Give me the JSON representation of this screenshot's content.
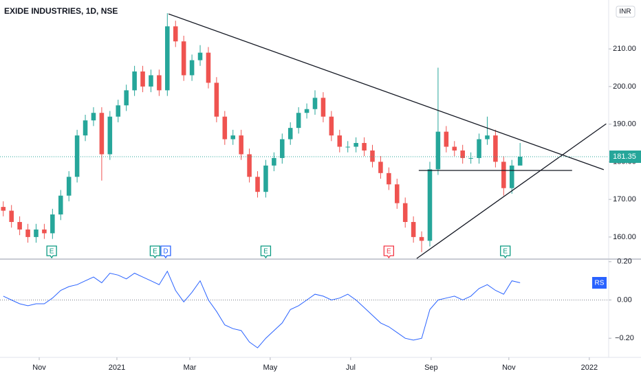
{
  "chart_data": {
    "type": "candlestick",
    "title": "EXIDE INDUSTRIES, 1D, NSE",
    "currency": "INR",
    "up_color": "#26a69a",
    "down_color": "#ef5350",
    "categories": [
      null,
      null,
      null,
      null,
      null,
      null,
      null,
      null,
      null,
      null,
      null,
      null,
      null,
      null,
      null,
      null,
      null,
      null,
      null,
      null,
      null,
      null,
      null,
      null,
      null,
      null,
      null,
      null,
      null,
      null,
      null,
      null,
      null,
      null,
      null,
      null,
      null,
      null,
      null,
      null,
      null,
      null,
      null,
      null,
      null,
      null,
      null,
      null,
      null,
      null,
      null,
      null,
      null,
      null,
      null,
      null,
      null,
      null,
      null,
      null,
      null,
      null,
      null,
      null
    ],
    "open": [
      168,
      167,
      164,
      162,
      160,
      162,
      161,
      166,
      171,
      176,
      187,
      191,
      193,
      182,
      192,
      195,
      199,
      204,
      200,
      203,
      199,
      216,
      212,
      203,
      207,
      209,
      201,
      192,
      186,
      187,
      182,
      176,
      172,
      179,
      181,
      186,
      189,
      193,
      194,
      197,
      192,
      187,
      184,
      184,
      185,
      183,
      180,
      177,
      174,
      169,
      164,
      160,
      159,
      178,
      188,
      184,
      183,
      181,
      181,
      186,
      187,
      180,
      173,
      179
    ],
    "high": [
      169.5,
      168.5,
      165.5,
      163.5,
      163.5,
      163.5,
      167.5,
      172.5,
      177.5,
      188.5,
      192.5,
      194.5,
      194.5,
      193.5,
      196.5,
      200.5,
      205.5,
      205.5,
      204.5,
      204.5,
      219.5,
      217.5,
      213.5,
      208.5,
      211,
      210.5,
      202.5,
      193.5,
      188.5,
      188.5,
      183.5,
      177.5,
      180.5,
      182.5,
      187.5,
      190.5,
      194.5,
      195.5,
      199,
      198.5,
      193.5,
      188.5,
      185.5,
      186.5,
      186.5,
      184.5,
      181.5,
      178.5,
      175.5,
      170.5,
      165.5,
      161.5,
      180,
      205,
      189.5,
      185.5,
      184.5,
      182.5,
      187.5,
      192,
      188.5,
      181.5,
      180.5,
      185
    ],
    "low": [
      165.5,
      162.5,
      160.5,
      158.5,
      158.5,
      159.5,
      159.5,
      164.5,
      169.5,
      174.5,
      185.5,
      189.5,
      175,
      180.5,
      190.5,
      193.5,
      197.5,
      198.5,
      198.5,
      197.5,
      197.5,
      210.5,
      201.5,
      201.5,
      205.5,
      199.5,
      190.5,
      184.5,
      184.5,
      180.5,
      174.5,
      170.5,
      170.5,
      177.5,
      179.5,
      184.5,
      187.5,
      191.5,
      192.5,
      190.5,
      185.5,
      182.5,
      182.5,
      182.5,
      181.5,
      178.5,
      175.5,
      172.5,
      167.5,
      162.5,
      158.5,
      156,
      157.5,
      176.5,
      182.5,
      181.5,
      179.5,
      179.5,
      179.5,
      184.5,
      178.5,
      171,
      171.5,
      179.5
    ],
    "close": [
      167,
      164,
      162,
      160,
      162,
      161,
      166,
      171,
      176,
      187,
      191,
      193,
      182,
      192,
      195,
      199,
      204,
      200,
      203,
      199,
      216,
      212,
      203,
      207,
      209,
      201,
      192,
      186,
      187,
      182,
      176,
      172,
      179,
      181,
      186,
      189,
      193,
      194,
      197,
      192,
      187,
      184,
      184,
      185,
      183,
      180,
      177,
      174,
      169,
      164,
      160,
      159,
      178,
      188,
      184,
      183,
      181,
      181,
      186,
      187,
      180,
      173,
      179,
      181.35
    ],
    "xlim": [
      -0.4,
      73.8
    ],
    "xticks": [
      {
        "value": 4.38,
        "label": "Nov"
      },
      {
        "value": 13.85,
        "label": "2021"
      },
      {
        "value": 22.74,
        "label": "Mar"
      },
      {
        "value": 32.54,
        "label": "May"
      },
      {
        "value": 42.35,
        "label": "Jul"
      },
      {
        "value": 52.16,
        "label": "Sep"
      },
      {
        "value": 61.63,
        "label": "Nov"
      },
      {
        "value": 71.44,
        "label": "2022"
      }
    ],
    "ylim": [
      154.5,
      223
    ],
    "yticks": [
      {
        "value": 160,
        "label": "160.00"
      },
      {
        "value": 170,
        "label": "170.00"
      },
      {
        "value": 180,
        "label": "180.00"
      },
      {
        "value": 190,
        "label": "190.00"
      },
      {
        "value": 200,
        "label": "200.00"
      },
      {
        "value": 210,
        "label": "210.00"
      }
    ],
    "trendlines": [
      {
        "x": [
          20.14,
          73.2
        ],
        "y": [
          219.3,
          177.9
        ]
      },
      {
        "x": [
          50.4,
          73.5
        ],
        "y": [
          154.3,
          190.1
        ]
      },
      {
        "x": [
          50.65,
          69.34
        ],
        "y": [
          177.7,
          177.7
        ]
      }
    ],
    "markers": [
      {
        "x": 5.9,
        "label": "E",
        "color": "#089981"
      },
      {
        "x": 18.5,
        "label": "E",
        "color": "#089981"
      },
      {
        "x": 19.8,
        "label": "D",
        "color": "#2962ff"
      },
      {
        "x": 32.0,
        "label": "E",
        "color": "#089981"
      },
      {
        "x": 47.0,
        "label": "E",
        "color": "#f23645"
      },
      {
        "x": 61.2,
        "label": "E",
        "color": "#089981"
      }
    ],
    "indicator": {
      "type": "line",
      "name": "RS",
      "color": "#2962ff",
      "values": [
        0.02,
        0.0,
        -0.02,
        -0.03,
        -0.02,
        -0.02,
        0.01,
        0.05,
        0.07,
        0.08,
        0.1,
        0.12,
        0.09,
        0.14,
        0.13,
        0.11,
        0.14,
        0.12,
        0.1,
        0.08,
        0.15,
        0.05,
        -0.01,
        0.04,
        0.1,
        0.0,
        -0.06,
        -0.13,
        -0.15,
        -0.16,
        -0.22,
        -0.25,
        -0.2,
        -0.16,
        -0.12,
        -0.05,
        -0.03,
        0.0,
        0.03,
        0.02,
        0.0,
        0.01,
        0.03,
        0.0,
        -0.04,
        -0.08,
        -0.12,
        -0.14,
        -0.17,
        -0.2,
        -0.21,
        -0.2,
        -0.05,
        0.0,
        0.01,
        0.02,
        0.0,
        0.02,
        0.06,
        0.08,
        0.05,
        0.03,
        0.1,
        0.09
      ],
      "ylim": [
        -0.3,
        0.21
      ],
      "yticks": [
        {
          "value": 0.2,
          "label": "0.20"
        },
        {
          "value": 0,
          "label": "0.00"
        },
        {
          "value": -0.2,
          "label": "−0.20"
        }
      ]
    }
  }
}
